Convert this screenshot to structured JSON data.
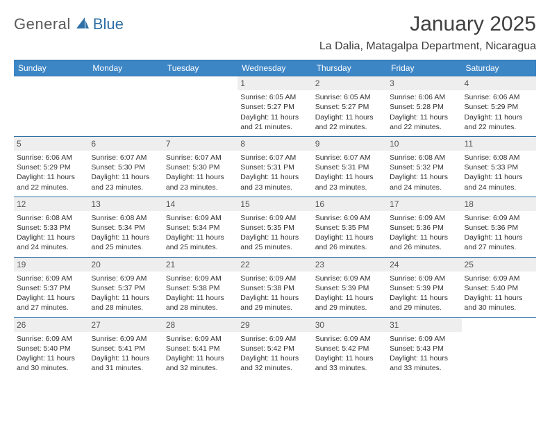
{
  "brand": {
    "general": "General",
    "blue": "Blue"
  },
  "title": "January 2025",
  "location": "La Dalia, Matagalpa Department, Nicaragua",
  "colors": {
    "header_bg": "#3d86c6",
    "rule": "#2f6fa7",
    "daynum_bg": "#eeeeee",
    "text": "#333333",
    "title_text": "#404040"
  },
  "day_names": [
    "Sunday",
    "Monday",
    "Tuesday",
    "Wednesday",
    "Thursday",
    "Friday",
    "Saturday"
  ],
  "weeks": [
    [
      {
        "n": "",
        "lines": []
      },
      {
        "n": "",
        "lines": []
      },
      {
        "n": "",
        "lines": []
      },
      {
        "n": "1",
        "lines": [
          "Sunrise: 6:05 AM",
          "Sunset: 5:27 PM",
          "Daylight: 11 hours and 21 minutes."
        ]
      },
      {
        "n": "2",
        "lines": [
          "Sunrise: 6:05 AM",
          "Sunset: 5:27 PM",
          "Daylight: 11 hours and 22 minutes."
        ]
      },
      {
        "n": "3",
        "lines": [
          "Sunrise: 6:06 AM",
          "Sunset: 5:28 PM",
          "Daylight: 11 hours and 22 minutes."
        ]
      },
      {
        "n": "4",
        "lines": [
          "Sunrise: 6:06 AM",
          "Sunset: 5:29 PM",
          "Daylight: 11 hours and 22 minutes."
        ]
      }
    ],
    [
      {
        "n": "5",
        "lines": [
          "Sunrise: 6:06 AM",
          "Sunset: 5:29 PM",
          "Daylight: 11 hours and 22 minutes."
        ]
      },
      {
        "n": "6",
        "lines": [
          "Sunrise: 6:07 AM",
          "Sunset: 5:30 PM",
          "Daylight: 11 hours and 23 minutes."
        ]
      },
      {
        "n": "7",
        "lines": [
          "Sunrise: 6:07 AM",
          "Sunset: 5:30 PM",
          "Daylight: 11 hours and 23 minutes."
        ]
      },
      {
        "n": "8",
        "lines": [
          "Sunrise: 6:07 AM",
          "Sunset: 5:31 PM",
          "Daylight: 11 hours and 23 minutes."
        ]
      },
      {
        "n": "9",
        "lines": [
          "Sunrise: 6:07 AM",
          "Sunset: 5:31 PM",
          "Daylight: 11 hours and 23 minutes."
        ]
      },
      {
        "n": "10",
        "lines": [
          "Sunrise: 6:08 AM",
          "Sunset: 5:32 PM",
          "Daylight: 11 hours and 24 minutes."
        ]
      },
      {
        "n": "11",
        "lines": [
          "Sunrise: 6:08 AM",
          "Sunset: 5:33 PM",
          "Daylight: 11 hours and 24 minutes."
        ]
      }
    ],
    [
      {
        "n": "12",
        "lines": [
          "Sunrise: 6:08 AM",
          "Sunset: 5:33 PM",
          "Daylight: 11 hours and 24 minutes."
        ]
      },
      {
        "n": "13",
        "lines": [
          "Sunrise: 6:08 AM",
          "Sunset: 5:34 PM",
          "Daylight: 11 hours and 25 minutes."
        ]
      },
      {
        "n": "14",
        "lines": [
          "Sunrise: 6:09 AM",
          "Sunset: 5:34 PM",
          "Daylight: 11 hours and 25 minutes."
        ]
      },
      {
        "n": "15",
        "lines": [
          "Sunrise: 6:09 AM",
          "Sunset: 5:35 PM",
          "Daylight: 11 hours and 25 minutes."
        ]
      },
      {
        "n": "16",
        "lines": [
          "Sunrise: 6:09 AM",
          "Sunset: 5:35 PM",
          "Daylight: 11 hours and 26 minutes."
        ]
      },
      {
        "n": "17",
        "lines": [
          "Sunrise: 6:09 AM",
          "Sunset: 5:36 PM",
          "Daylight: 11 hours and 26 minutes."
        ]
      },
      {
        "n": "18",
        "lines": [
          "Sunrise: 6:09 AM",
          "Sunset: 5:36 PM",
          "Daylight: 11 hours and 27 minutes."
        ]
      }
    ],
    [
      {
        "n": "19",
        "lines": [
          "Sunrise: 6:09 AM",
          "Sunset: 5:37 PM",
          "Daylight: 11 hours and 27 minutes."
        ]
      },
      {
        "n": "20",
        "lines": [
          "Sunrise: 6:09 AM",
          "Sunset: 5:37 PM",
          "Daylight: 11 hours and 28 minutes."
        ]
      },
      {
        "n": "21",
        "lines": [
          "Sunrise: 6:09 AM",
          "Sunset: 5:38 PM",
          "Daylight: 11 hours and 28 minutes."
        ]
      },
      {
        "n": "22",
        "lines": [
          "Sunrise: 6:09 AM",
          "Sunset: 5:38 PM",
          "Daylight: 11 hours and 29 minutes."
        ]
      },
      {
        "n": "23",
        "lines": [
          "Sunrise: 6:09 AM",
          "Sunset: 5:39 PM",
          "Daylight: 11 hours and 29 minutes."
        ]
      },
      {
        "n": "24",
        "lines": [
          "Sunrise: 6:09 AM",
          "Sunset: 5:39 PM",
          "Daylight: 11 hours and 29 minutes."
        ]
      },
      {
        "n": "25",
        "lines": [
          "Sunrise: 6:09 AM",
          "Sunset: 5:40 PM",
          "Daylight: 11 hours and 30 minutes."
        ]
      }
    ],
    [
      {
        "n": "26",
        "lines": [
          "Sunrise: 6:09 AM",
          "Sunset: 5:40 PM",
          "Daylight: 11 hours and 30 minutes."
        ]
      },
      {
        "n": "27",
        "lines": [
          "Sunrise: 6:09 AM",
          "Sunset: 5:41 PM",
          "Daylight: 11 hours and 31 minutes."
        ]
      },
      {
        "n": "28",
        "lines": [
          "Sunrise: 6:09 AM",
          "Sunset: 5:41 PM",
          "Daylight: 11 hours and 32 minutes."
        ]
      },
      {
        "n": "29",
        "lines": [
          "Sunrise: 6:09 AM",
          "Sunset: 5:42 PM",
          "Daylight: 11 hours and 32 minutes."
        ]
      },
      {
        "n": "30",
        "lines": [
          "Sunrise: 6:09 AM",
          "Sunset: 5:42 PM",
          "Daylight: 11 hours and 33 minutes."
        ]
      },
      {
        "n": "31",
        "lines": [
          "Sunrise: 6:09 AM",
          "Sunset: 5:43 PM",
          "Daylight: 11 hours and 33 minutes."
        ]
      },
      {
        "n": "",
        "lines": []
      }
    ]
  ]
}
